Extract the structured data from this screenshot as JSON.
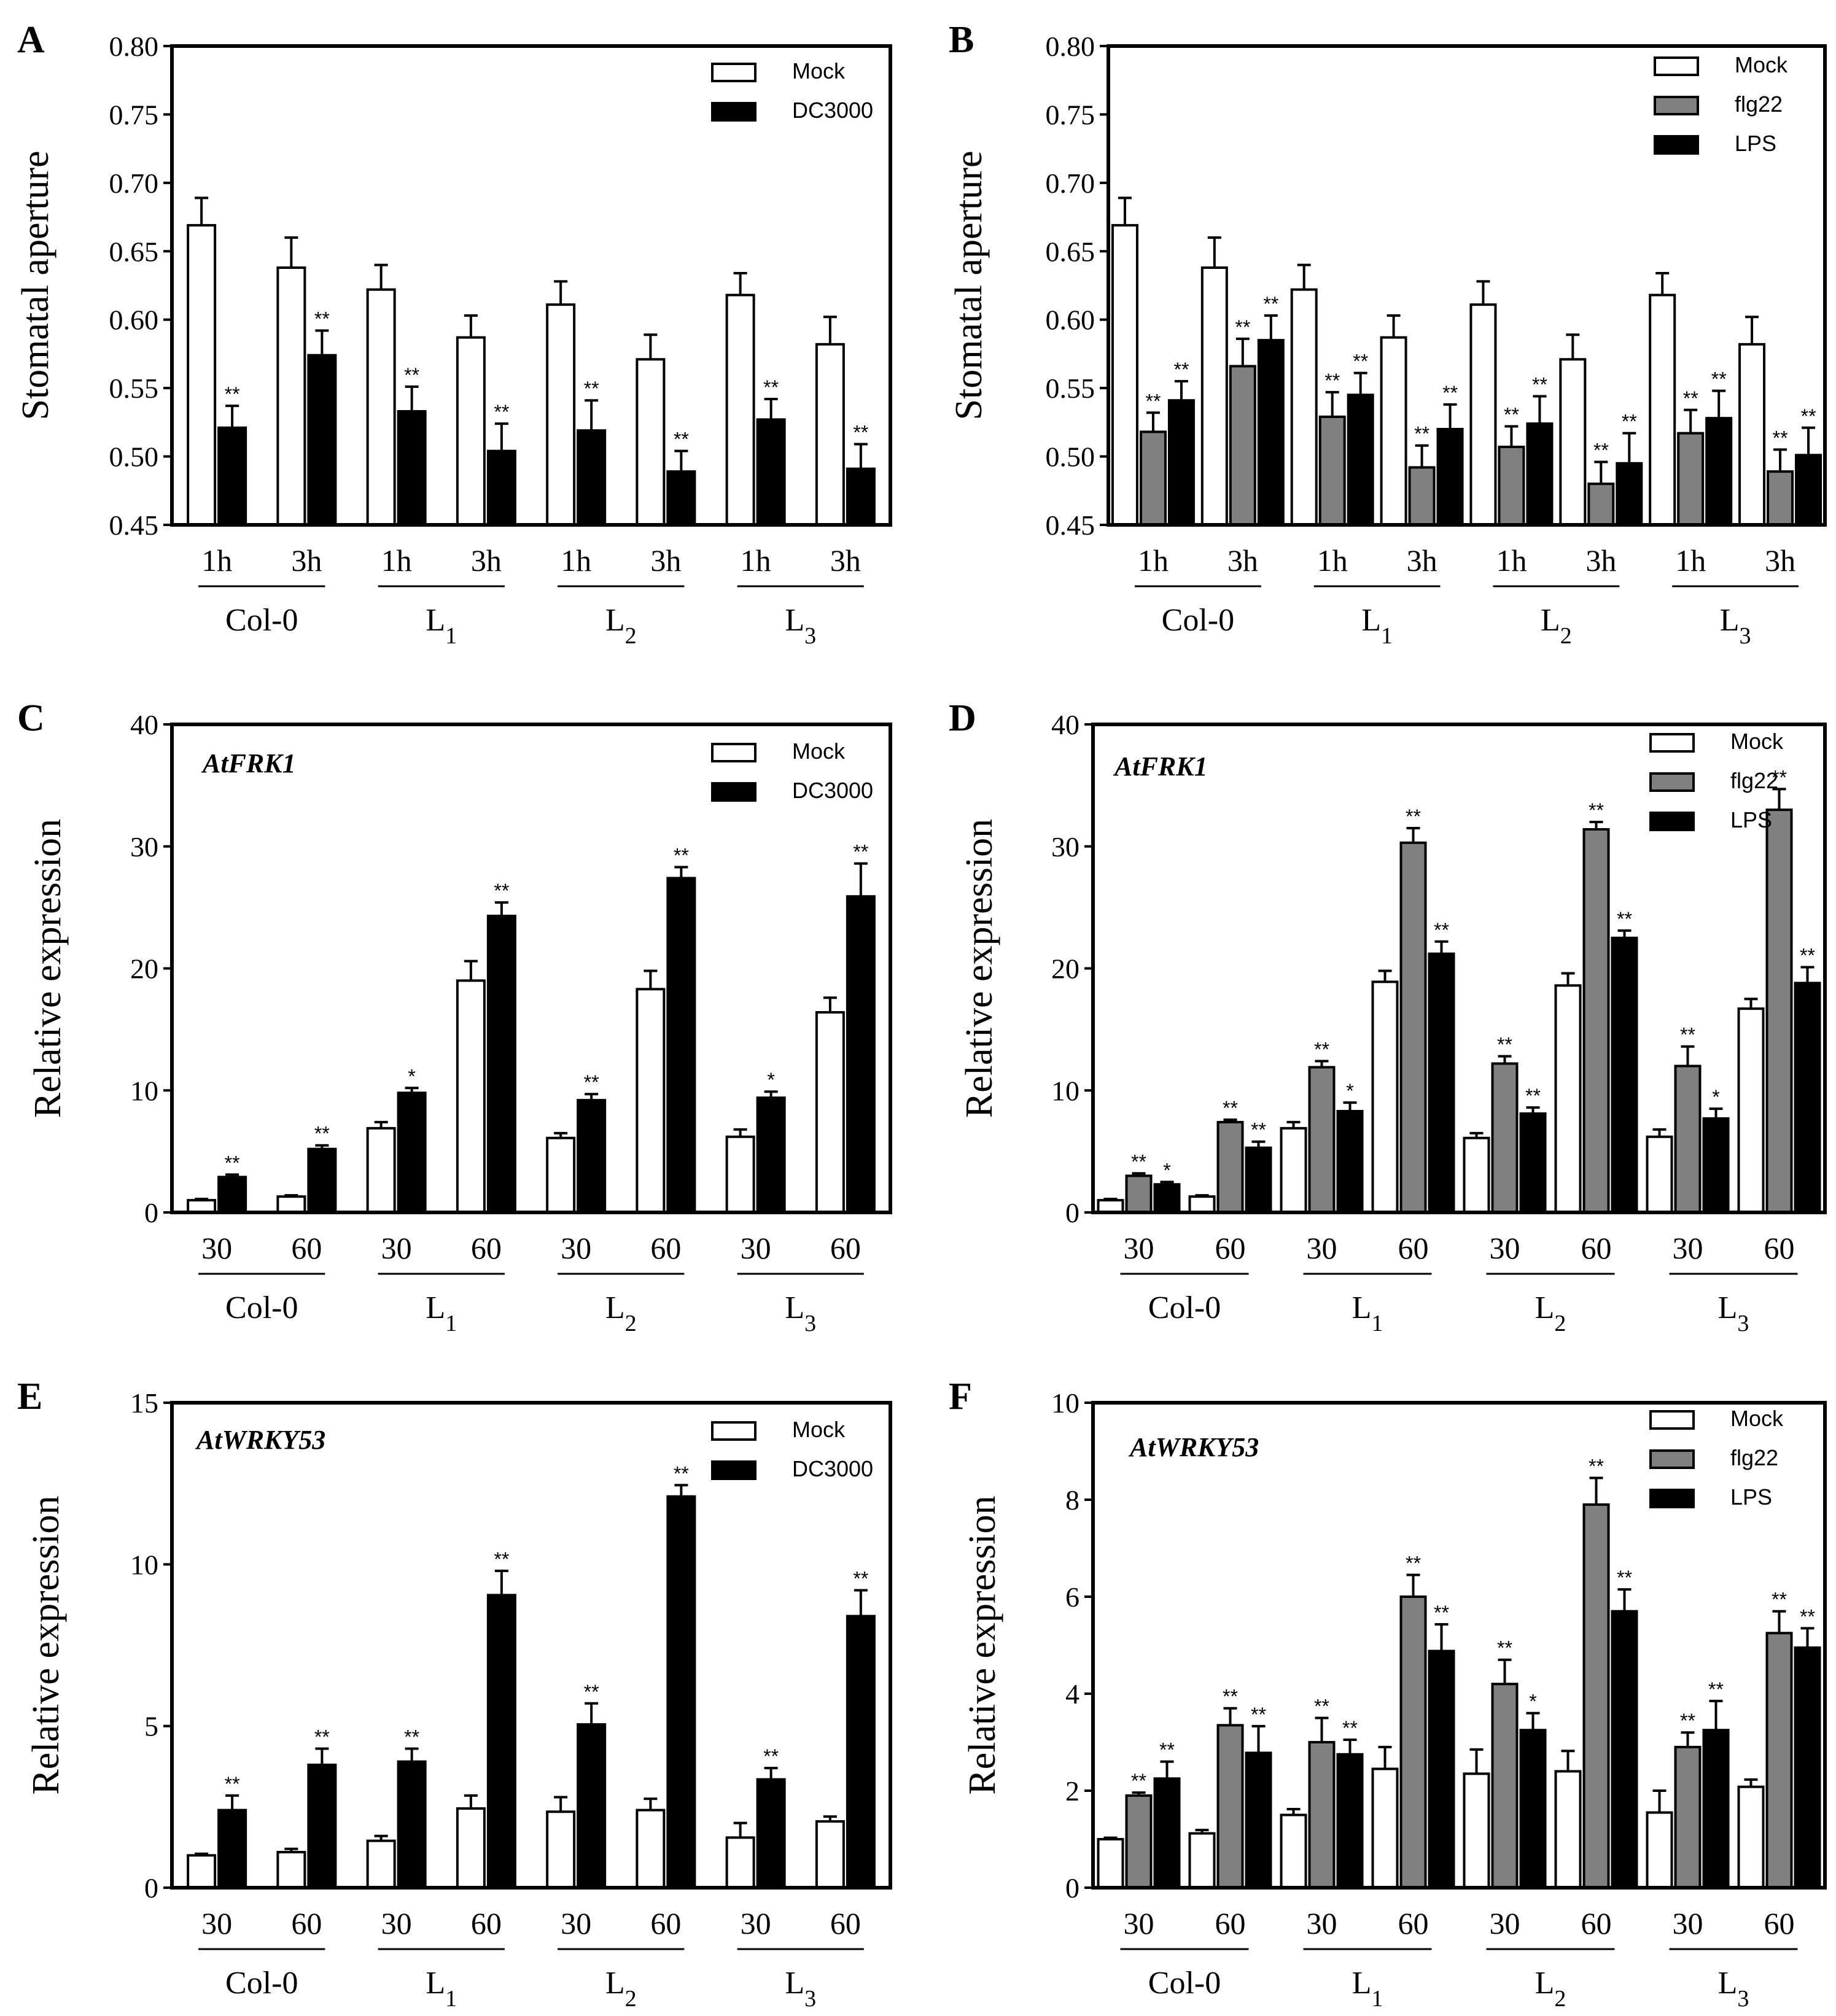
{
  "chart_data": [
    {
      "type": "bar",
      "panel": "A",
      "title": "",
      "gene": "",
      "ylabel": "Stomatal aperture",
      "ylim": [
        0.45,
        0.8
      ],
      "yticks": [
        "0.45",
        "0.50",
        "0.55",
        "0.60",
        "0.65",
        "0.70",
        "0.75",
        "0.80"
      ],
      "categories": [
        "1h",
        "3h",
        "1h",
        "3h",
        "1h",
        "3h",
        "1h",
        "3h"
      ],
      "groups": [
        "Col-0",
        "L1",
        "L2",
        "L3"
      ],
      "series": [
        {
          "name": "Mock",
          "color": "#ffffff",
          "values": [
            0.669,
            0.638,
            0.622,
            0.587,
            0.611,
            0.571,
            0.618,
            0.582
          ],
          "errors": [
            0.02,
            0.022,
            0.018,
            0.016,
            0.017,
            0.018,
            0.016,
            0.02
          ],
          "sig": [
            "",
            "",
            "",
            "",
            "",
            "",
            "",
            ""
          ]
        },
        {
          "name": "DC3000",
          "color": "#000000",
          "values": [
            0.521,
            0.574,
            0.533,
            0.504,
            0.519,
            0.489,
            0.527,
            0.491
          ],
          "errors": [
            0.016,
            0.018,
            0.018,
            0.02,
            0.022,
            0.015,
            0.015,
            0.018
          ],
          "sig": [
            "**",
            "**",
            "**",
            "**",
            "**",
            "**",
            "**",
            "**"
          ]
        }
      ]
    },
    {
      "type": "bar",
      "panel": "B",
      "title": "",
      "gene": "",
      "ylabel": "Stomatal aperture",
      "ylim": [
        0.45,
        0.8
      ],
      "yticks": [
        "0.45",
        "0.50",
        "0.55",
        "0.60",
        "0.65",
        "0.70",
        "0.75",
        "0.80"
      ],
      "categories": [
        "1h",
        "3h",
        "1h",
        "3h",
        "1h",
        "3h",
        "1h",
        "3h"
      ],
      "groups": [
        "Col-0",
        "L1",
        "L2",
        "L3"
      ],
      "series": [
        {
          "name": "Mock",
          "color": "#ffffff",
          "values": [
            0.669,
            0.638,
            0.622,
            0.587,
            0.611,
            0.571,
            0.618,
            0.582
          ],
          "errors": [
            0.02,
            0.022,
            0.018,
            0.016,
            0.017,
            0.018,
            0.016,
            0.02
          ],
          "sig": [
            "",
            "",
            "",
            "",
            "",
            "",
            "",
            ""
          ]
        },
        {
          "name": "flg22",
          "color": "#808080",
          "values": [
            0.518,
            0.566,
            0.529,
            0.492,
            0.507,
            0.48,
            0.517,
            0.489
          ],
          "errors": [
            0.014,
            0.02,
            0.018,
            0.016,
            0.015,
            0.016,
            0.017,
            0.016
          ],
          "sig": [
            "**",
            "**",
            "**",
            "**",
            "**",
            "**",
            "**",
            "**"
          ]
        },
        {
          "name": "LPS",
          "color": "#000000",
          "values": [
            0.541,
            0.585,
            0.545,
            0.52,
            0.524,
            0.495,
            0.528,
            0.501
          ],
          "errors": [
            0.014,
            0.018,
            0.016,
            0.018,
            0.02,
            0.022,
            0.02,
            0.02
          ],
          "sig": [
            "**",
            "**",
            "**",
            "**",
            "**",
            "**",
            "**",
            "**"
          ]
        }
      ]
    },
    {
      "type": "bar",
      "panel": "C",
      "title": "",
      "gene": "AtFRK1",
      "ylabel": "Relative expression",
      "ylim": [
        0,
        40
      ],
      "yticks": [
        "0",
        "10",
        "20",
        "30",
        "40"
      ],
      "categories": [
        "30",
        "60",
        "30",
        "60",
        "30",
        "60",
        "30",
        "60"
      ],
      "groups": [
        "Col-0",
        "L1",
        "L2",
        "L3"
      ],
      "series": [
        {
          "name": "Mock",
          "color": "#ffffff",
          "values": [
            1.0,
            1.3,
            6.9,
            19.0,
            6.1,
            18.3,
            6.2,
            16.4
          ],
          "errors": [
            0.1,
            0.1,
            0.5,
            1.6,
            0.4,
            1.5,
            0.6,
            1.2
          ],
          "sig": [
            "",
            "",
            "",
            "",
            "",
            "",
            "",
            ""
          ]
        },
        {
          "name": "DC3000",
          "color": "#000000",
          "values": [
            2.9,
            5.2,
            9.8,
            24.3,
            9.2,
            27.4,
            9.4,
            25.9
          ],
          "errors": [
            0.2,
            0.3,
            0.4,
            1.1,
            0.5,
            0.9,
            0.5,
            2.7
          ],
          "sig": [
            "**",
            "**",
            "*",
            "**",
            "**",
            "**",
            "*",
            "**"
          ]
        }
      ]
    },
    {
      "type": "bar",
      "panel": "D",
      "title": "",
      "gene": "AtFRK1",
      "ylabel": "Relative expression",
      "ylim": [
        0,
        40
      ],
      "yticks": [
        "0",
        "10",
        "20",
        "30",
        "40"
      ],
      "categories": [
        "30",
        "60",
        "30",
        "60",
        "30",
        "60",
        "30",
        "60"
      ],
      "groups": [
        "Col-0",
        "L1",
        "L2",
        "L3"
      ],
      "series": [
        {
          "name": "Mock",
          "color": "#ffffff",
          "values": [
            1.0,
            1.3,
            6.9,
            18.9,
            6.1,
            18.6,
            6.2,
            16.7
          ],
          "errors": [
            0.1,
            0.1,
            0.5,
            0.9,
            0.4,
            1.0,
            0.6,
            0.8
          ],
          "sig": [
            "",
            "",
            "",
            "",
            "",
            "",
            "",
            ""
          ]
        },
        {
          "name": "flg22",
          "color": "#808080",
          "values": [
            3.0,
            7.4,
            11.9,
            30.3,
            12.2,
            31.4,
            12.0,
            33.0
          ],
          "errors": [
            0.2,
            0.2,
            0.5,
            1.2,
            0.6,
            0.6,
            1.6,
            1.7
          ],
          "sig": [
            "**",
            "**",
            "**",
            "**",
            "**",
            "**",
            "**",
            "**"
          ]
        },
        {
          "name": "LPS",
          "color": "#000000",
          "values": [
            2.3,
            5.3,
            8.3,
            21.2,
            8.1,
            22.5,
            7.7,
            18.8
          ],
          "errors": [
            0.2,
            0.5,
            0.7,
            1.0,
            0.5,
            0.6,
            0.8,
            1.3
          ],
          "sig": [
            "*",
            "**",
            "*",
            "**",
            "**",
            "**",
            "*",
            "**"
          ]
        }
      ]
    },
    {
      "type": "bar",
      "panel": "E",
      "title": "",
      "gene": "AtWRKY53",
      "ylabel": "Relative expression",
      "ylim": [
        0,
        15
      ],
      "yticks": [
        "0",
        "5",
        "10",
        "15"
      ],
      "categories": [
        "30",
        "60",
        "30",
        "60",
        "30",
        "60",
        "30",
        "60"
      ],
      "groups": [
        "Col-0",
        "L1",
        "L2",
        "L3"
      ],
      "series": [
        {
          "name": "Mock",
          "color": "#ffffff",
          "values": [
            1.0,
            1.1,
            1.45,
            2.45,
            2.35,
            2.4,
            1.55,
            2.05
          ],
          "errors": [
            0.05,
            0.1,
            0.15,
            0.4,
            0.45,
            0.35,
            0.45,
            0.15
          ],
          "sig": [
            "",
            "",
            "",
            "",
            "",
            "",
            "",
            ""
          ]
        },
        {
          "name": "DC3000",
          "color": "#000000",
          "values": [
            2.4,
            3.8,
            3.9,
            9.05,
            5.05,
            12.1,
            3.35,
            8.4
          ],
          "errors": [
            0.45,
            0.5,
            0.4,
            0.75,
            0.65,
            0.35,
            0.35,
            0.8
          ],
          "sig": [
            "**",
            "**",
            "**",
            "**",
            "**",
            "**",
            "**",
            "**"
          ]
        }
      ]
    },
    {
      "type": "bar",
      "panel": "F",
      "title": "",
      "gene": "AtWRKY53",
      "ylabel": "Relative expression",
      "ylim": [
        0,
        10
      ],
      "yticks": [
        "0",
        "2",
        "4",
        "6",
        "8",
        "10"
      ],
      "categories": [
        "30",
        "60",
        "30",
        "60",
        "30",
        "60",
        "30",
        "60"
      ],
      "groups": [
        "Col-0",
        "L1",
        "L2",
        "L3"
      ],
      "series": [
        {
          "name": "Mock",
          "color": "#ffffff",
          "values": [
            1.0,
            1.12,
            1.5,
            2.45,
            2.35,
            2.4,
            1.55,
            2.08
          ],
          "errors": [
            0.03,
            0.07,
            0.12,
            0.45,
            0.5,
            0.42,
            0.45,
            0.15
          ],
          "sig": [
            "",
            "",
            "",
            "",
            "",
            "",
            "",
            ""
          ]
        },
        {
          "name": "flg22",
          "color": "#808080",
          "values": [
            1.9,
            3.35,
            3.0,
            6.0,
            4.2,
            7.9,
            2.9,
            5.25
          ],
          "errors": [
            0.06,
            0.35,
            0.5,
            0.45,
            0.5,
            0.55,
            0.3,
            0.45
          ],
          "sig": [
            "**",
            "**",
            "**",
            "**",
            "**",
            "**",
            "**",
            "**"
          ]
        },
        {
          "name": "LPS",
          "color": "#000000",
          "values": [
            2.25,
            2.78,
            2.75,
            4.88,
            3.25,
            5.7,
            3.25,
            4.95
          ],
          "errors": [
            0.35,
            0.55,
            0.3,
            0.55,
            0.35,
            0.45,
            0.6,
            0.4
          ],
          "sig": [
            "**",
            "**",
            "**",
            "**",
            "*",
            "**",
            "**",
            "**"
          ]
        }
      ]
    }
  ]
}
